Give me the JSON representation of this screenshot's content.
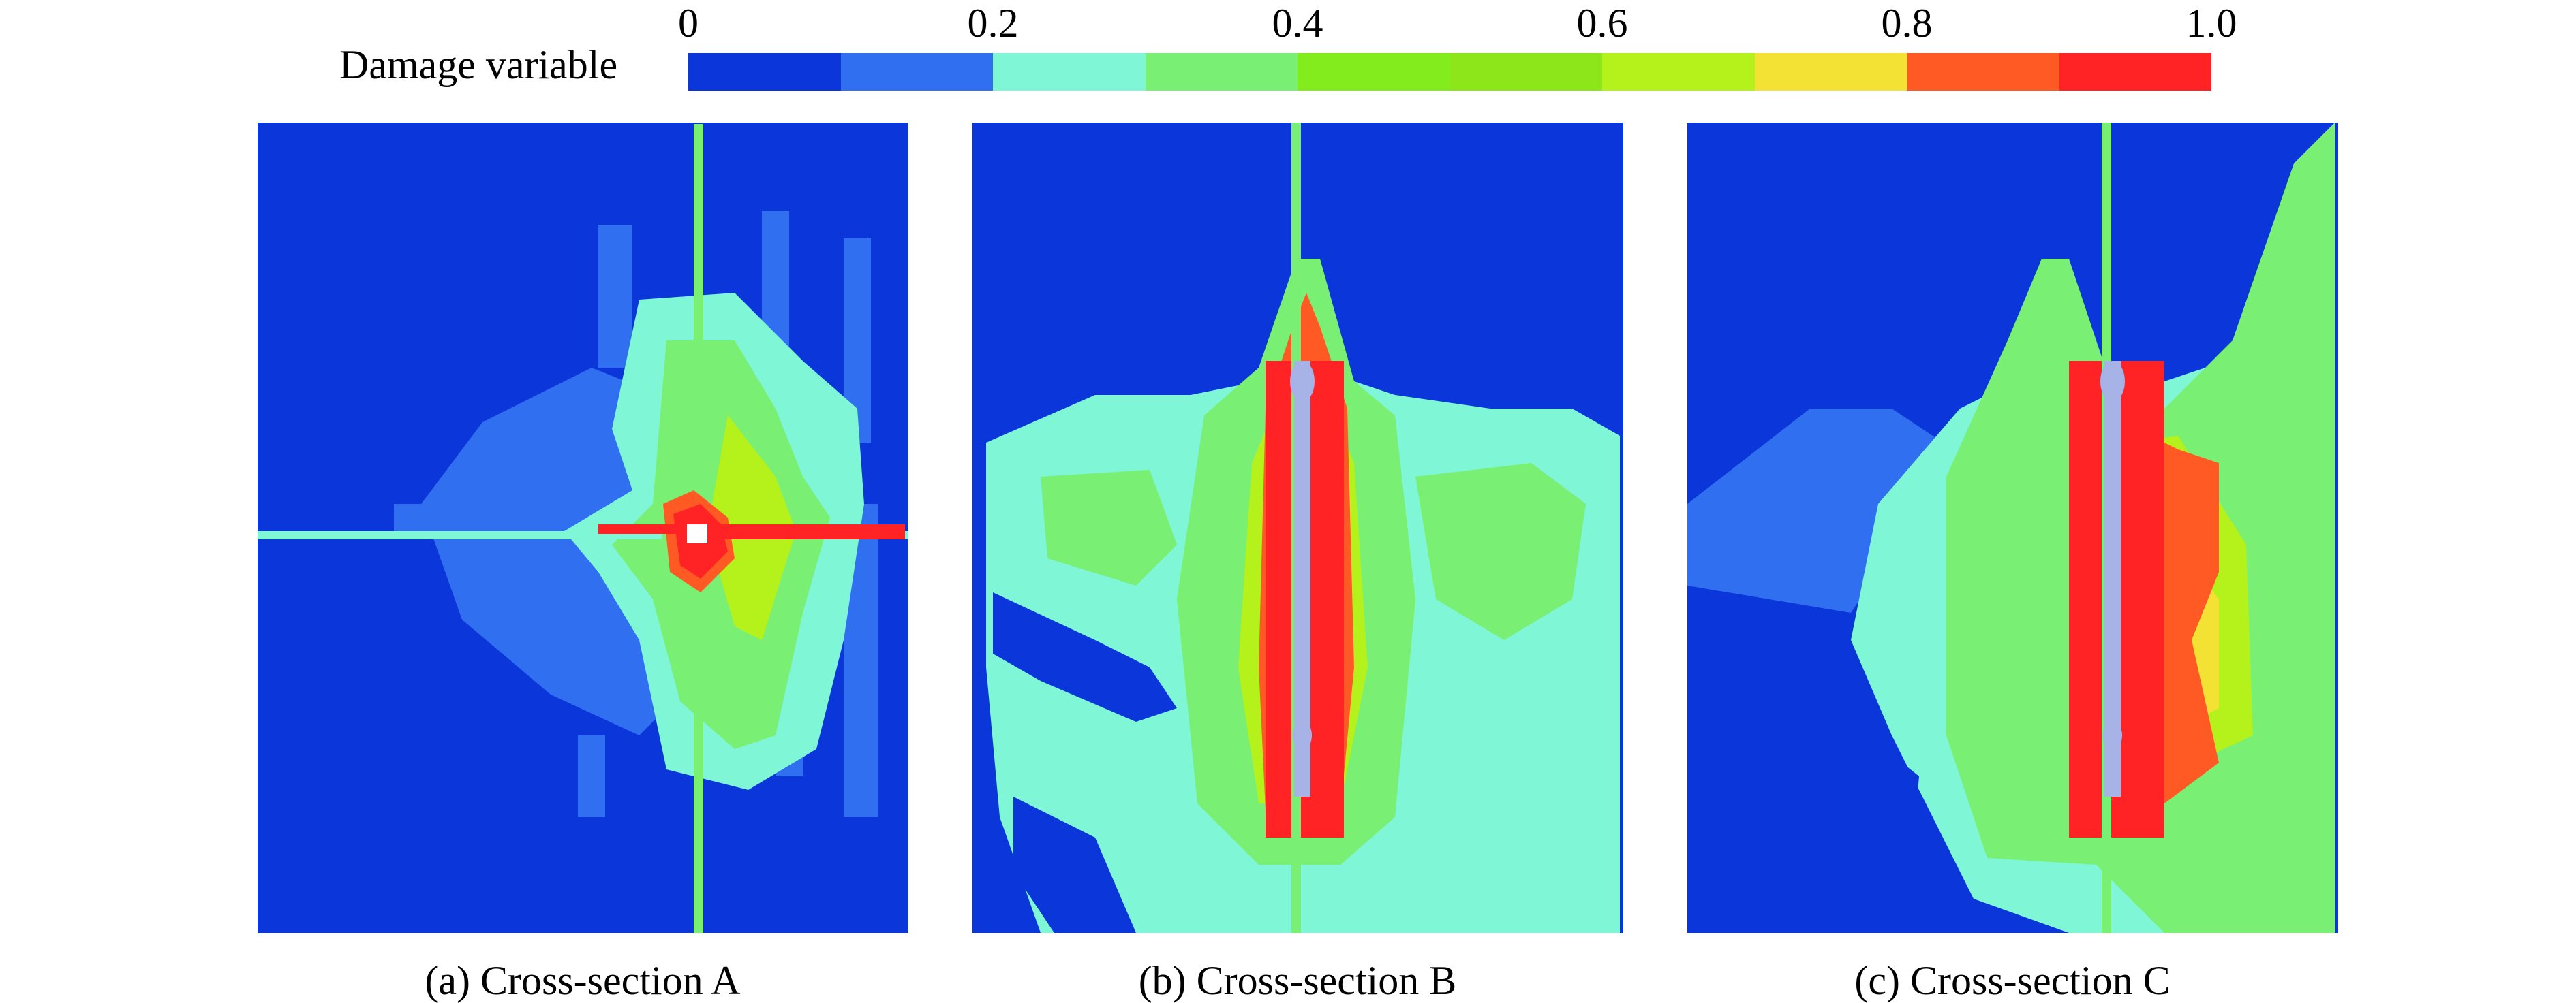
{
  "legend": {
    "title": "Damage variable",
    "ticks": [
      "0",
      "0.2",
      "0.4",
      "0.6",
      "0.8",
      "1.0"
    ],
    "colors": [
      "#0b36d9",
      "#2f6ff0",
      "#7ff6d6",
      "#79ef74",
      "#83ec1c",
      "#8ce61a",
      "#b5f21c",
      "#f3e133",
      "#ff5a23",
      "#ff2325"
    ]
  },
  "panels": [
    {
      "caption": "(a) Cross-section A"
    },
    {
      "caption": "(b) Cross-section B"
    },
    {
      "caption": "(c) Cross-section C"
    }
  ],
  "palette": {
    "background": "#0b36d9",
    "low": "#2f6ff0",
    "cyan": "#7ff6d6",
    "green": "#79ef74",
    "lime": "#b5f21c",
    "yellow": "#f3e133",
    "orange": "#ff5a23",
    "red": "#ff2325",
    "hole": "#a7b3e6"
  }
}
